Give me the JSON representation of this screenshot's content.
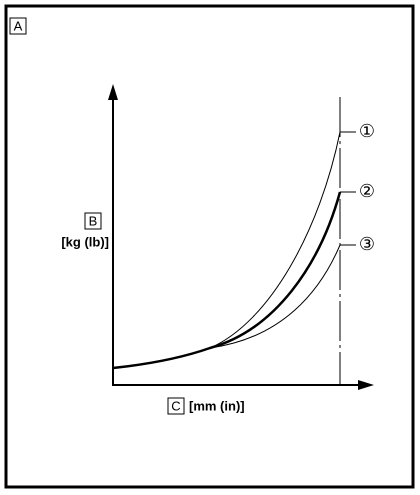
{
  "corner_label": "A",
  "y_axis": {
    "letter": "B",
    "unit": "[kg (lb)]"
  },
  "x_axis": {
    "letter": "C",
    "unit": "[mm (in)]"
  },
  "curves": [
    {
      "label": "①"
    },
    {
      "label": "②"
    },
    {
      "label": "③"
    }
  ]
}
